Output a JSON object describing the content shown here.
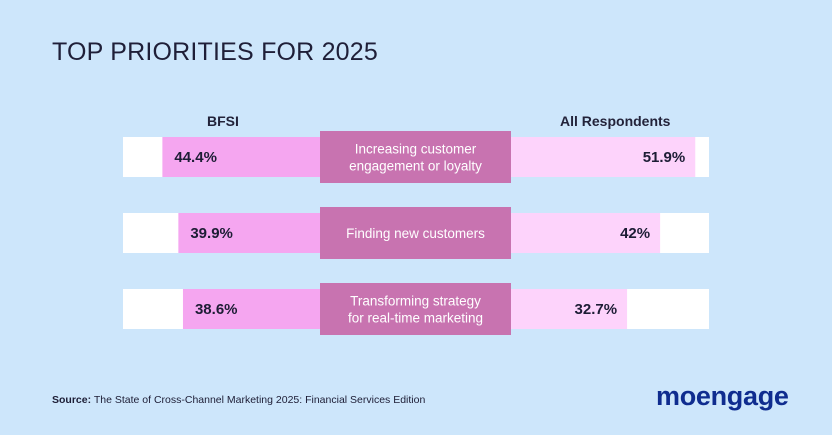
{
  "title": "TOP PRIORITIES FOR 2025",
  "chart_data": {
    "type": "bar",
    "title": "TOP PRIORITIES FOR 2025",
    "categories": [
      [
        "Increasing customer",
        "engagement or loyalty"
      ],
      [
        "Finding new customers"
      ],
      [
        "Transforming strategy",
        "for real-time marketing"
      ]
    ],
    "series": [
      {
        "name": "BFSI",
        "values": [
          44.4,
          39.9,
          38.6
        ],
        "labels": [
          "44.4%",
          "39.9%",
          "38.6%"
        ],
        "color": "#f5a6f0"
      },
      {
        "name": "All Respondents",
        "values": [
          51.9,
          42,
          32.7
        ],
        "labels": [
          "51.9%",
          "42%",
          "32.7%"
        ],
        "color": "#fdd3fb"
      }
    ],
    "ylim": [
      0,
      60
    ],
    "colors": {
      "track": "#ffffff",
      "label_box": "#c873b0",
      "label_text": "#ffffff"
    }
  },
  "source": {
    "label": "Source:",
    "text": " The State of Cross-Channel Marketing 2025: Financial Services Edition"
  },
  "logo": {
    "text": "moengage"
  }
}
